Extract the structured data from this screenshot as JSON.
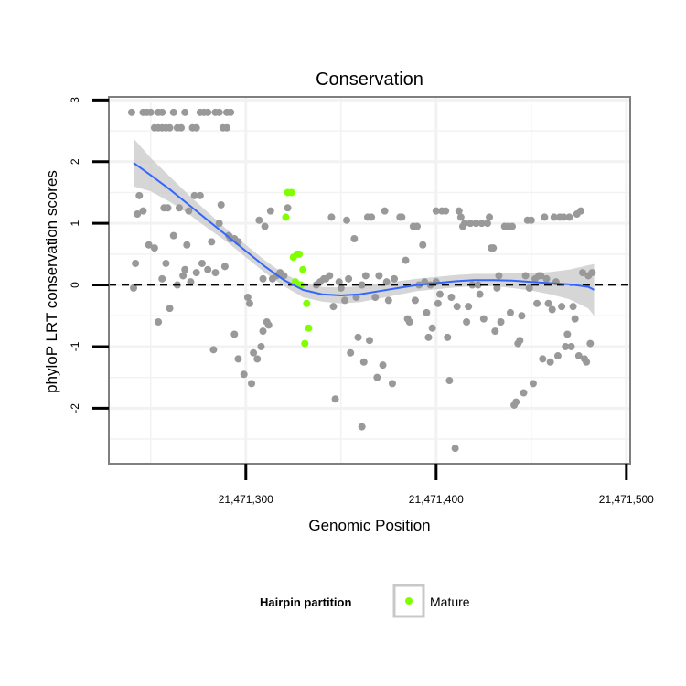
{
  "chart_data": {
    "type": "scatter",
    "title": "Conservation",
    "xlabel": "Genomic Position",
    "ylabel": "phyloP LRT conservation scores",
    "xlim": [
      21471228,
      21471502
    ],
    "ylim": [
      -2.9,
      3.05
    ],
    "x_ticks": [
      21471300,
      21471400,
      21471500
    ],
    "x_tick_labels": [
      "21,471,300",
      "21,471,400",
      "21,471,500"
    ],
    "y_ticks": [
      -2,
      -1,
      0,
      1,
      2,
      3
    ],
    "y_tick_labels": [
      "-2",
      "-1",
      "0",
      "1",
      "2",
      "3"
    ],
    "hline": 0,
    "legend": {
      "title": "Hairpin partition",
      "entries": [
        {
          "label": "Mature",
          "color": "#7fff00"
        }
      ],
      "position": "bottom"
    },
    "colors": {
      "other": "#999999",
      "mature": "#7fff00",
      "smooth": "#3366ff",
      "band": "#c8c8c8"
    },
    "series": [
      {
        "name": "Other",
        "points": [
          [
            21471240,
            2.8
          ],
          [
            21471246,
            2.8
          ],
          [
            21471248,
            2.8
          ],
          [
            21471250,
            2.8
          ],
          [
            21471254,
            2.8
          ],
          [
            21471256,
            2.8
          ],
          [
            21471262,
            2.8
          ],
          [
            21471268,
            2.8
          ],
          [
            21471276,
            2.8
          ],
          [
            21471278,
            2.8
          ],
          [
            21471280,
            2.8
          ],
          [
            21471284,
            2.8
          ],
          [
            21471286,
            2.8
          ],
          [
            21471290,
            2.8
          ],
          [
            21471292,
            2.8
          ],
          [
            21471252,
            2.55
          ],
          [
            21471254,
            2.55
          ],
          [
            21471256,
            2.55
          ],
          [
            21471258,
            2.55
          ],
          [
            21471260,
            2.55
          ],
          [
            21471264,
            2.55
          ],
          [
            21471266,
            2.55
          ],
          [
            21471272,
            2.55
          ],
          [
            21471274,
            2.55
          ],
          [
            21471288,
            2.55
          ],
          [
            21471290,
            2.55
          ],
          [
            21471241,
            -0.05
          ],
          [
            21471242,
            0.35
          ],
          [
            21471243,
            1.15
          ],
          [
            21471244,
            1.45
          ],
          [
            21471246,
            1.2
          ],
          [
            21471249,
            0.65
          ],
          [
            21471252,
            0.6
          ],
          [
            21471254,
            -0.6
          ],
          [
            21471256,
            0.1
          ],
          [
            21471257,
            1.25
          ],
          [
            21471258,
            0.35
          ],
          [
            21471259,
            1.25
          ],
          [
            21471260,
            -0.38
          ],
          [
            21471262,
            0.8
          ],
          [
            21471264,
            0.0
          ],
          [
            21471265,
            1.25
          ],
          [
            21471267,
            0.15
          ],
          [
            21471268,
            0.25
          ],
          [
            21471269,
            0.65
          ],
          [
            21471270,
            1.2
          ],
          [
            21471271,
            0.05
          ],
          [
            21471273,
            1.45
          ],
          [
            21471274,
            0.2
          ],
          [
            21471276,
            1.45
          ],
          [
            21471277,
            0.35
          ],
          [
            21471280,
            0.25
          ],
          [
            21471282,
            0.7
          ],
          [
            21471283,
            -1.05
          ],
          [
            21471284,
            0.2
          ],
          [
            21471286,
            1.0
          ],
          [
            21471287,
            1.3
          ],
          [
            21471289,
            0.3
          ],
          [
            21471291,
            0.8
          ],
          [
            21471292,
            0.75
          ],
          [
            21471294,
            0.75
          ],
          [
            21471294,
            -0.8
          ],
          [
            21471296,
            0.7
          ],
          [
            21471296,
            -1.2
          ],
          [
            21471299,
            -1.45
          ],
          [
            21471301,
            -0.2
          ],
          [
            21471302,
            -0.3
          ],
          [
            21471303,
            -1.6
          ],
          [
            21471304,
            -1.1
          ],
          [
            21471306,
            -1.2
          ],
          [
            21471307,
            1.05
          ],
          [
            21471308,
            -1.0
          ],
          [
            21471309,
            0.1
          ],
          [
            21471309,
            -0.75
          ],
          [
            21471310,
            0.95
          ],
          [
            21471311,
            -0.6
          ],
          [
            21471312,
            -0.65
          ],
          [
            21471313,
            1.2
          ],
          [
            21471314,
            0.1
          ],
          [
            21471316,
            0.15
          ],
          [
            21471318,
            0.2
          ],
          [
            21471320,
            0.15
          ],
          [
            21471322,
            1.25
          ],
          [
            21471337,
            0.0
          ],
          [
            21471339,
            0.05
          ],
          [
            21471341,
            0.1
          ],
          [
            21471342,
            0.1
          ],
          [
            21471344,
            0.15
          ],
          [
            21471345,
            1.1
          ],
          [
            21471346,
            -0.35
          ],
          [
            21471347,
            -1.85
          ],
          [
            21471349,
            0.05
          ],
          [
            21471350,
            -0.05
          ],
          [
            21471352,
            -0.25
          ],
          [
            21471353,
            1.05
          ],
          [
            21471354,
            0.1
          ],
          [
            21471355,
            -1.1
          ],
          [
            21471357,
            0.75
          ],
          [
            21471358,
            -0.2
          ],
          [
            21471359,
            -0.85
          ],
          [
            21471361,
            -2.3
          ],
          [
            21471361,
            0.0
          ],
          [
            21471362,
            -1.25
          ],
          [
            21471363,
            0.15
          ],
          [
            21471364,
            1.1
          ],
          [
            21471365,
            -0.9
          ],
          [
            21471366,
            1.1
          ],
          [
            21471368,
            -0.2
          ],
          [
            21471369,
            -1.5
          ],
          [
            21471370,
            0.15
          ],
          [
            21471372,
            -1.3
          ],
          [
            21471373,
            1.2
          ],
          [
            21471374,
            0.05
          ],
          [
            21471375,
            -0.25
          ],
          [
            21471377,
            -1.6
          ],
          [
            21471378,
            0.1
          ],
          [
            21471381,
            1.1
          ],
          [
            21471382,
            1.1
          ],
          [
            21471384,
            0.4
          ],
          [
            21471385,
            -0.55
          ],
          [
            21471386,
            -0.6
          ],
          [
            21471388,
            0.95
          ],
          [
            21471389,
            -0.25
          ],
          [
            21471390,
            0.95
          ],
          [
            21471391,
            0.0
          ],
          [
            21471393,
            0.65
          ],
          [
            21471394,
            0.05
          ],
          [
            21471395,
            -0.45
          ],
          [
            21471396,
            -0.85
          ],
          [
            21471397,
            0.0
          ],
          [
            21471398,
            -0.7
          ],
          [
            21471400,
            0.05
          ],
          [
            21471400,
            1.2
          ],
          [
            21471401,
            -0.3
          ],
          [
            21471402,
            -0.15
          ],
          [
            21471403,
            1.2
          ],
          [
            21471405,
            1.2
          ],
          [
            21471406,
            -0.85
          ],
          [
            21471407,
            -1.55
          ],
          [
            21471408,
            -0.2
          ],
          [
            21471410,
            -2.65
          ],
          [
            21471411,
            -0.35
          ],
          [
            21471412,
            1.2
          ],
          [
            21471413,
            1.1
          ],
          [
            21471414,
            0.95
          ],
          [
            21471415,
            1.0
          ],
          [
            21471416,
            -0.6
          ],
          [
            21471417,
            -0.35
          ],
          [
            21471418,
            1.0
          ],
          [
            21471419,
            0.0
          ],
          [
            21471421,
            1.0
          ],
          [
            21471422,
            0.0
          ],
          [
            21471423,
            -0.15
          ],
          [
            21471424,
            1.0
          ],
          [
            21471425,
            -0.55
          ],
          [
            21471427,
            1.0
          ],
          [
            21471428,
            1.1
          ],
          [
            21471429,
            0.6
          ],
          [
            21471430,
            0.6
          ],
          [
            21471431,
            -0.75
          ],
          [
            21471432,
            -0.05
          ],
          [
            21471433,
            0.15
          ],
          [
            21471434,
            -0.6
          ],
          [
            21471436,
            0.95
          ],
          [
            21471438,
            0.95
          ],
          [
            21471439,
            -0.45
          ],
          [
            21471440,
            0.95
          ],
          [
            21471441,
            -1.95
          ],
          [
            21471442,
            -1.9
          ],
          [
            21471443,
            -0.95
          ],
          [
            21471444,
            -0.9
          ],
          [
            21471445,
            -0.5
          ],
          [
            21471446,
            -1.75
          ],
          [
            21471447,
            0.15
          ],
          [
            21471448,
            1.05
          ],
          [
            21471449,
            -0.05
          ],
          [
            21471450,
            1.05
          ],
          [
            21471451,
            -1.6
          ],
          [
            21471452,
            0.1
          ],
          [
            21471453,
            -0.3
          ],
          [
            21471454,
            0.15
          ],
          [
            21471455,
            0.15
          ],
          [
            21471456,
            -1.2
          ],
          [
            21471457,
            1.1
          ],
          [
            21471458,
            0.1
          ],
          [
            21471459,
            -0.3
          ],
          [
            21471460,
            -1.25
          ],
          [
            21471461,
            -0.4
          ],
          [
            21471462,
            1.1
          ],
          [
            21471463,
            0.05
          ],
          [
            21471464,
            -1.15
          ],
          [
            21471465,
            1.1
          ],
          [
            21471466,
            -0.35
          ],
          [
            21471467,
            1.1
          ],
          [
            21471468,
            -1.0
          ],
          [
            21471469,
            -0.8
          ],
          [
            21471470,
            1.1
          ],
          [
            21471471,
            -1.0
          ],
          [
            21471472,
            -0.35
          ],
          [
            21471473,
            -0.55
          ],
          [
            21471474,
            1.15
          ],
          [
            21471475,
            -1.15
          ],
          [
            21471476,
            1.2
          ],
          [
            21471477,
            0.2
          ],
          [
            21471478,
            -1.2
          ],
          [
            21471479,
            -1.25
          ],
          [
            21471480,
            0.15
          ],
          [
            21471481,
            -0.95
          ],
          [
            21471482,
            0.2
          ]
        ]
      },
      {
        "name": "Mature",
        "points": [
          [
            21471321,
            1.1
          ],
          [
            21471322,
            1.5
          ],
          [
            21471324,
            1.5
          ],
          [
            21471325,
            0.45
          ],
          [
            21471327,
            0.5
          ],
          [
            21471328,
            0.5
          ],
          [
            21471329,
            0.0
          ],
          [
            21471330,
            0.25
          ],
          [
            21471331,
            -0.95
          ],
          [
            21471332,
            -0.3
          ],
          [
            21471333,
            -0.7
          ],
          [
            21471326,
            0.05
          ]
        ]
      }
    ],
    "smooth": {
      "method": "loess",
      "x": [
        21471241,
        21471250,
        21471260,
        21471270,
        21471280,
        21471290,
        21471300,
        21471310,
        21471320,
        21471330,
        21471340,
        21471350,
        21471360,
        21471370,
        21471380,
        21471390,
        21471400,
        21471410,
        21471420,
        21471430,
        21471440,
        21471450,
        21471460,
        21471470,
        21471480,
        21471483
      ],
      "y": [
        1.98,
        1.78,
        1.55,
        1.3,
        1.05,
        0.8,
        0.55,
        0.3,
        0.08,
        -0.08,
        -0.15,
        -0.17,
        -0.15,
        -0.1,
        -0.05,
        0.0,
        0.03,
        0.06,
        0.08,
        0.08,
        0.07,
        0.05,
        0.03,
        0.01,
        -0.03,
        -0.08
      ],
      "lower": [
        1.6,
        1.52,
        1.35,
        1.15,
        0.92,
        0.7,
        0.45,
        0.2,
        -0.02,
        -0.2,
        -0.27,
        -0.3,
        -0.28,
        -0.22,
        -0.16,
        -0.1,
        -0.07,
        -0.04,
        -0.02,
        -0.02,
        -0.05,
        -0.09,
        -0.15,
        -0.23,
        -0.38,
        -0.5
      ],
      "upper": [
        2.38,
        2.06,
        1.76,
        1.46,
        1.18,
        0.9,
        0.65,
        0.4,
        0.18,
        0.04,
        -0.03,
        -0.04,
        -0.02,
        0.02,
        0.06,
        0.1,
        0.13,
        0.16,
        0.18,
        0.18,
        0.19,
        0.19,
        0.21,
        0.25,
        0.32,
        0.34
      ]
    }
  }
}
